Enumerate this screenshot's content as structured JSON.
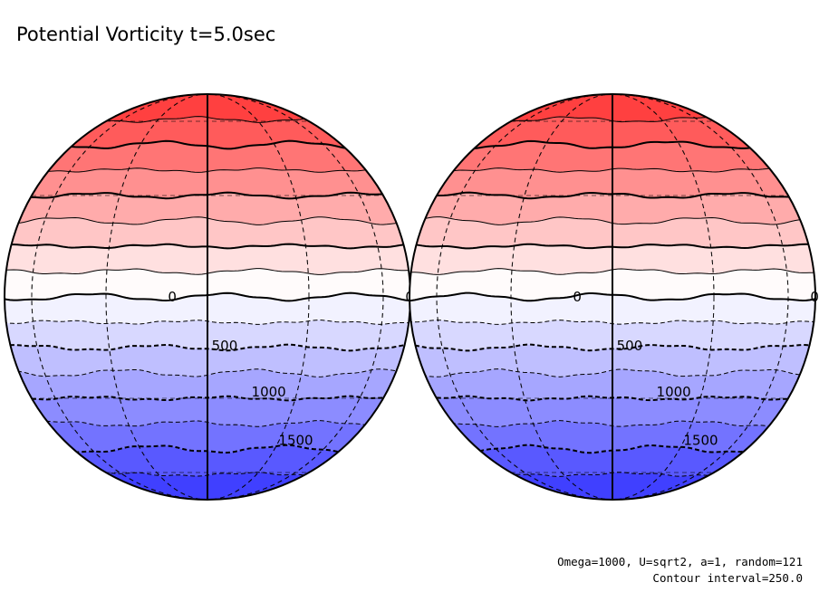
{
  "title": "Potential Vorticity t=5.0sec",
  "footer": {
    "params": "Omega=1000, U=sqrt2, a=1, random=121",
    "interval": "Contour interval=250.0"
  },
  "chart_data": {
    "type": "contour",
    "projection": "orthographic",
    "contour_interval": 250.0,
    "bands_positive": 8,
    "bands_negative": 8,
    "colors": {
      "positive_max": "#ff4040",
      "zero": "#ffffff",
      "negative_max": "#4040ff",
      "contour": "#000000"
    },
    "globes": [
      {
        "labels": [
          {
            "text": "0",
            "lat": 0,
            "lon": -10
          },
          {
            "text": "0",
            "lat": 0,
            "lon": 85
          },
          {
            "text": "500",
            "lat": -14,
            "lon": 5
          },
          {
            "text": "1000",
            "lat": -28,
            "lon": 20
          },
          {
            "text": "1500",
            "lat": -45,
            "lon": 38
          }
        ]
      },
      {
        "labels": [
          {
            "text": "0",
            "lat": 0,
            "lon": -10
          },
          {
            "text": "0",
            "lat": 0,
            "lon": 85
          },
          {
            "text": "500",
            "lat": -14,
            "lon": 5
          },
          {
            "text": "1000",
            "lat": -28,
            "lon": 20
          },
          {
            "text": "1500",
            "lat": -45,
            "lon": 38
          }
        ]
      }
    ]
  }
}
